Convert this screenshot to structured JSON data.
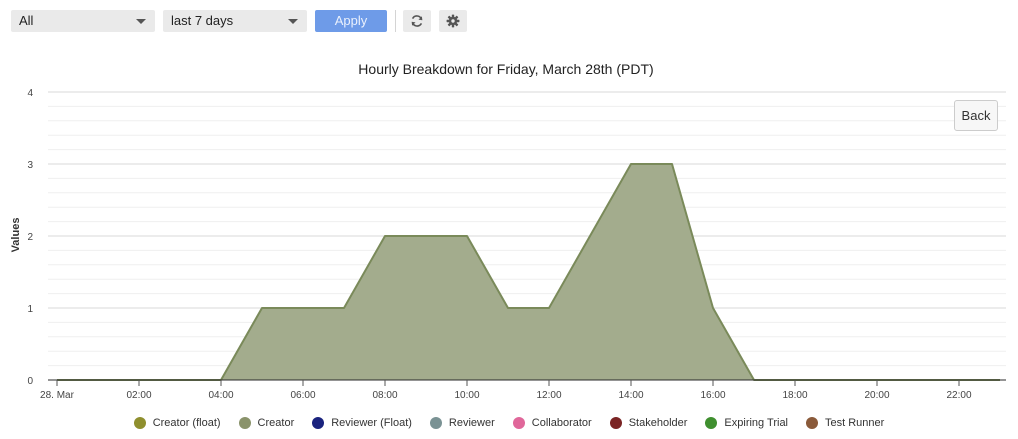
{
  "toolbar": {
    "filter_select": {
      "value": "All"
    },
    "range_select": {
      "value": "last 7 days"
    },
    "apply_label": "Apply",
    "refresh_icon": "refresh-icon",
    "settings_icon": "gear-icon"
  },
  "back_label": "Back",
  "chart_data": {
    "type": "area",
    "title": "Hourly Breakdown for Friday, March 28th (PDT)",
    "ylabel": "Values",
    "xlabel": "",
    "ylim": [
      0,
      4
    ],
    "yticks": [
      "0",
      "1",
      "2",
      "3",
      "4"
    ],
    "xlim": [
      0,
      23.5
    ],
    "xticks": [
      {
        "hour": 0,
        "label": "28. Mar"
      },
      {
        "hour": 2,
        "label": "02:00"
      },
      {
        "hour": 4,
        "label": "04:00"
      },
      {
        "hour": 6,
        "label": "06:00"
      },
      {
        "hour": 8,
        "label": "08:00"
      },
      {
        "hour": 10,
        "label": "10:00"
      },
      {
        "hour": 12,
        "label": "12:00"
      },
      {
        "hour": 14,
        "label": "14:00"
      },
      {
        "hour": 16,
        "label": "16:00"
      },
      {
        "hour": 18,
        "label": "18:00"
      },
      {
        "hour": 20,
        "label": "20:00"
      },
      {
        "hour": 22,
        "label": "22:00"
      }
    ],
    "grid": true,
    "legend_position": "bottom",
    "series": [
      {
        "name": "Creator (float)",
        "color": "#8f8f2e",
        "x": [],
        "values": []
      },
      {
        "name": "Creator",
        "color": "#8a936b",
        "x": [
          0,
          1,
          2,
          3,
          4,
          5,
          6,
          7,
          8,
          9,
          10,
          11,
          12,
          13,
          14,
          15,
          16,
          17,
          18,
          19,
          20,
          21,
          22,
          23
        ],
        "values": [
          0,
          0,
          0,
          0,
          0,
          1,
          1,
          1,
          2,
          2,
          2,
          1,
          1,
          2,
          3,
          3,
          1,
          0,
          0,
          0,
          0,
          0,
          0,
          0
        ]
      },
      {
        "name": "Reviewer (Float)",
        "color": "#1a237e",
        "x": [],
        "values": []
      },
      {
        "name": "Reviewer",
        "color": "#7a9294",
        "x": [],
        "values": []
      },
      {
        "name": "Collaborator",
        "color": "#e0679a",
        "x": [],
        "values": []
      },
      {
        "name": "Stakeholder",
        "color": "#7a2424",
        "x": [],
        "values": []
      },
      {
        "name": "Expiring Trial",
        "color": "#3f8f2f",
        "x": [],
        "values": []
      },
      {
        "name": "Test Runner",
        "color": "#8a5a3a",
        "x": [],
        "values": []
      }
    ]
  }
}
